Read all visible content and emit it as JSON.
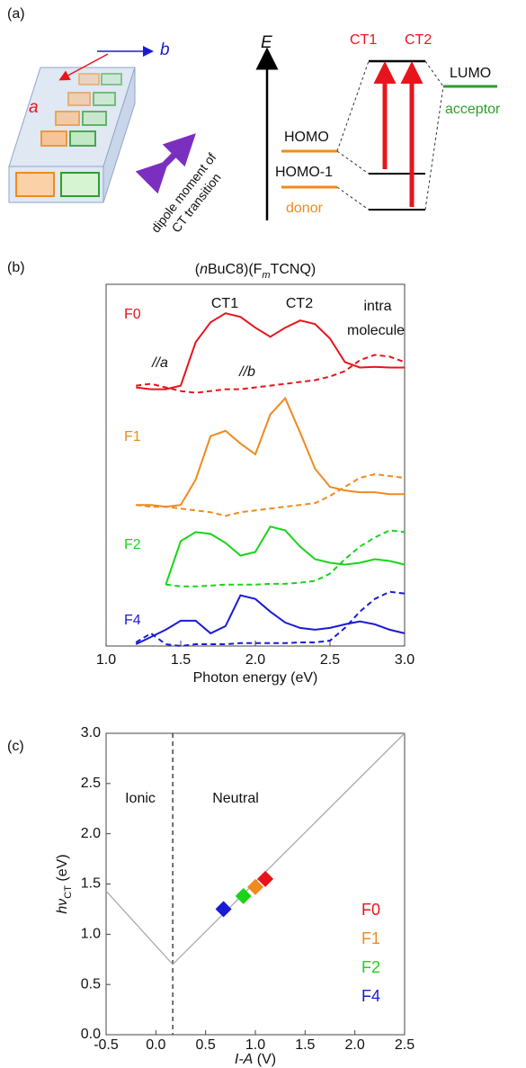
{
  "panel_labels": [
    "(a)",
    "(b)",
    "(c)"
  ],
  "diagram": {
    "axis_a": "a",
    "axis_b": "b",
    "dipole_line1": "dipole moment of",
    "dipole_line2": "CT transition",
    "energy": "E",
    "ct1": "CT1",
    "ct2": "CT2",
    "lumo": "LUMO",
    "acceptor": "acceptor",
    "homo": "HOMO",
    "homo1": "HOMO-1",
    "donor": "donor"
  },
  "chart_data": [
    {
      "type": "line",
      "title_parts": [
        "(",
        "n",
        "BuC8)(F",
        "m",
        "TCNQ)"
      ],
      "x_label": "Photon energy (eV)",
      "x": [
        1.2,
        1.3,
        1.4,
        1.5,
        1.6,
        1.7,
        1.8,
        1.9,
        2.0,
        2.1,
        2.2,
        2.3,
        2.4,
        2.5,
        2.6,
        2.7,
        2.8,
        2.9,
        3.0
      ],
      "xlim": [
        1.0,
        3.0
      ],
      "xticks": [
        {
          "value": 1.0,
          "label": "1.0"
        },
        1.5,
        {
          "value": 2.0,
          "label": "2.0"
        },
        2.5,
        {
          "value": 3.0,
          "label": "3.0"
        }
      ],
      "ylim": [
        0,
        10
      ],
      "annotations": [
        "CT1",
        "CT2",
        "intra",
        "molecule",
        "//a",
        "//b"
      ],
      "series": [
        {
          "name": "F0",
          "color": "#e8141b",
          "values": [
            7.15,
            7.1,
            7.1,
            7.2,
            8.4,
            8.95,
            9.2,
            9.1,
            8.8,
            8.55,
            8.8,
            9.0,
            8.9,
            8.5,
            7.85,
            7.7,
            7.72,
            7.7,
            7.7
          ],
          "dashed_values": [
            7.2,
            7.25,
            7.15,
            7.05,
            7.0,
            7.05,
            7.1,
            7.1,
            7.15,
            7.2,
            7.25,
            7.3,
            7.35,
            7.45,
            7.6,
            7.9,
            8.05,
            8.0,
            7.85
          ]
        },
        {
          "name": "F1",
          "color": "#f08a1e",
          "values": [
            3.9,
            3.9,
            3.85,
            3.9,
            4.6,
            5.8,
            5.95,
            5.6,
            5.3,
            6.4,
            6.85,
            5.9,
            4.9,
            4.4,
            4.3,
            4.25,
            4.25,
            4.2,
            4.2
          ],
          "dashed_values": [
            3.9,
            3.85,
            3.85,
            3.8,
            3.75,
            3.7,
            3.6,
            3.7,
            3.75,
            3.8,
            3.85,
            3.9,
            3.95,
            4.15,
            4.4,
            4.65,
            4.75,
            4.7,
            4.65
          ]
        },
        {
          "name": "F2",
          "color": "#19d419",
          "values": [
            null,
            null,
            1.7,
            2.9,
            3.15,
            3.1,
            2.85,
            2.5,
            2.6,
            3.3,
            3.2,
            2.75,
            2.4,
            2.3,
            2.25,
            2.3,
            2.4,
            2.35,
            2.25
          ],
          "dashed_values": [
            null,
            null,
            1.7,
            1.65,
            1.65,
            1.67,
            1.7,
            1.7,
            1.7,
            1.72,
            1.72,
            1.75,
            1.8,
            2.0,
            2.4,
            2.75,
            3.0,
            3.2,
            3.15
          ]
        },
        {
          "name": "F4",
          "color": "#1a1ad6",
          "values": [
            0.05,
            0.25,
            0.45,
            0.7,
            0.7,
            0.35,
            0.55,
            1.4,
            1.3,
            0.95,
            0.65,
            0.5,
            0.45,
            0.5,
            0.6,
            0.68,
            0.6,
            0.45,
            0.35
          ],
          "dashed_values": [
            0.1,
            0.35,
            0.05,
            0.0,
            0.05,
            0.05,
            0.05,
            0.08,
            0.08,
            0.08,
            0.08,
            0.1,
            0.1,
            0.15,
            0.5,
            0.95,
            1.3,
            1.5,
            1.45
          ]
        }
      ]
    },
    {
      "type": "scatter",
      "y_label_parts": [
        "hν",
        "CT",
        " (eV)"
      ],
      "x_label_parts": [
        "I-A",
        " (V)"
      ],
      "xlim": [
        -0.5,
        2.5
      ],
      "xticks": [
        -0.5,
        {
          "value": 0.0,
          "label": "0.0"
        },
        0.5,
        {
          "value": 1.0,
          "label": "1.0"
        },
        1.5,
        {
          "value": 2.0,
          "label": "2.0"
        },
        2.5
      ],
      "ylim": [
        0.0,
        3.0
      ],
      "yticks": [
        {
          "value": 0.0,
          "label": "0.0"
        },
        0.5,
        {
          "value": 1.0,
          "label": "1.0"
        },
        1.5,
        {
          "value": 2.0,
          "label": "2.0"
        },
        2.5,
        {
          "value": 3.0,
          "label": "3.0"
        }
      ],
      "regions": [
        "Ionic",
        "Neutral"
      ],
      "boundary_x": 0.17,
      "reference_line": {
        "x": [
          -0.5,
          0.17,
          2.5
        ],
        "values": [
          1.43,
          0.7,
          3.0
        ]
      },
      "series": [
        {
          "name": "F0",
          "color": "#e8141b",
          "x": [
            1.1
          ],
          "values": [
            1.55
          ]
        },
        {
          "name": "F1",
          "color": "#f08a1e",
          "x": [
            1.0
          ],
          "values": [
            1.47
          ]
        },
        {
          "name": "F2",
          "color": "#19d419",
          "x": [
            0.88
          ],
          "values": [
            1.38
          ]
        },
        {
          "name": "F4",
          "color": "#1a1ad6",
          "x": [
            0.68
          ],
          "values": [
            1.25
          ]
        }
      ]
    }
  ]
}
